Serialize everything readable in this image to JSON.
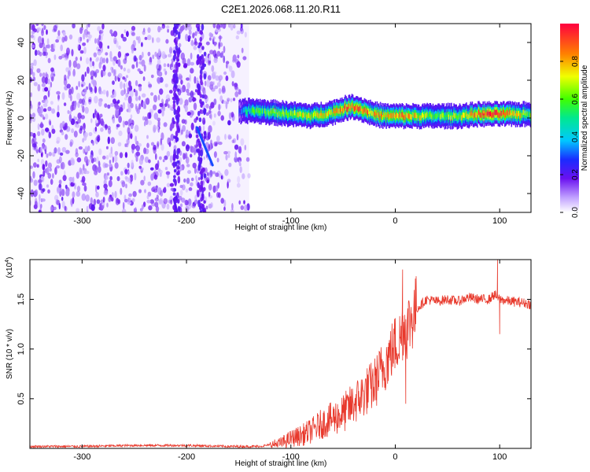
{
  "chart_data": [
    {
      "type": "heatmap",
      "title": "C2E1.2026.068.11.20.R11",
      "xlabel": "Height of straight line (km)",
      "ylabel": "Frequency (Hz)",
      "xlim": [
        -350,
        130
      ],
      "ylim": [
        -50,
        50
      ],
      "x_ticks": [
        -300,
        -200,
        -100,
        0,
        100
      ],
      "x_tick_labels": [
        "-300",
        "-200",
        "-100",
        "0",
        "100"
      ],
      "y_ticks": [
        -40,
        -20,
        0,
        20,
        40
      ],
      "y_tick_labels": [
        "-40",
        "-20",
        "0",
        "20",
        "40"
      ],
      "colorbar": {
        "label": "Normalized spectral amplitude",
        "range": [
          0.0,
          1.0
        ],
        "ticks": [
          0.0,
          0.2,
          0.4,
          0.6,
          0.8
        ],
        "tick_labels": [
          "0.0",
          "0.2",
          "0.4",
          "0.6",
          "0.8"
        ]
      },
      "noise_region": {
        "x_range": [
          -350,
          -140
        ],
        "y_range": [
          -50,
          50
        ],
        "amplitude": [
          0.05,
          0.2
        ]
      },
      "signal_band": {
        "x": [
          -150,
          -140,
          -120,
          -100,
          -80,
          -60,
          -50,
          -40,
          -30,
          -20,
          -10,
          0,
          10,
          20,
          40,
          60,
          80,
          100,
          130
        ],
        "center_freq": [
          3,
          4,
          3,
          2,
          1,
          3,
          5,
          6,
          4,
          2,
          1,
          1,
          1,
          1,
          1,
          1,
          2,
          2,
          2
        ],
        "peak_amplitude": [
          0.3,
          0.5,
          0.6,
          0.65,
          0.7,
          0.75,
          0.85,
          0.9,
          0.85,
          0.8,
          0.75,
          0.8,
          0.85,
          0.7,
          0.6,
          0.65,
          0.9,
          0.95,
          0.6
        ]
      },
      "streak": {
        "x": [
          -190,
          -175
        ],
        "freq": [
          -5,
          -25
        ],
        "amplitude": 0.3
      },
      "streak2": {
        "x": [
          -212,
          -209
        ],
        "freq": [
          -43,
          -50
        ],
        "amplitude": 0.2
      }
    },
    {
      "type": "line",
      "title": "",
      "xlabel": "Height of straight line (km)",
      "ylabel": "SNR (10 * v/v)",
      "y_scale_label": "(x10",
      "y_scale_exponent": "4",
      "y_scale_suffix": ")",
      "xlim": [
        -350,
        130
      ],
      "ylim": [
        0.0,
        1.9
      ],
      "x_ticks": [
        -300,
        -200,
        -100,
        0,
        100
      ],
      "x_tick_labels": [
        "-300",
        "-200",
        "-100",
        "0",
        "100"
      ],
      "y_ticks": [
        0.5,
        1.0,
        1.5
      ],
      "y_tick_labels": [
        "0.5",
        "1.0",
        "1.5"
      ],
      "series": [
        {
          "name": "SNR",
          "color": "#e8392c",
          "x": [
            -350,
            -300,
            -250,
            -200,
            -160,
            -130,
            -110,
            -100,
            -90,
            -80,
            -70,
            -60,
            -50,
            -40,
            -30,
            -20,
            -15,
            -10,
            -5,
            0,
            5,
            8,
            10,
            15,
            20,
            25,
            30,
            40,
            50,
            60,
            70,
            80,
            90,
            95,
            100,
            110,
            120,
            130
          ],
          "values": [
            0.02,
            0.02,
            0.03,
            0.03,
            0.02,
            0.02,
            0.05,
            0.1,
            0.13,
            0.18,
            0.25,
            0.3,
            0.35,
            0.45,
            0.55,
            0.65,
            0.75,
            0.85,
            0.95,
            1.05,
            1.1,
            1.25,
            1.2,
            1.3,
            1.4,
            1.45,
            1.5,
            1.48,
            1.5,
            1.48,
            1.52,
            1.5,
            1.5,
            1.55,
            1.5,
            1.48,
            1.47,
            1.45
          ],
          "spikes": [
            {
              "x": 7,
              "value": 1.8
            },
            {
              "x": 10,
              "value": 0.45
            },
            {
              "x": 98,
              "value": 1.9
            },
            {
              "x": 100,
              "value": 1.15
            }
          ]
        }
      ]
    }
  ]
}
